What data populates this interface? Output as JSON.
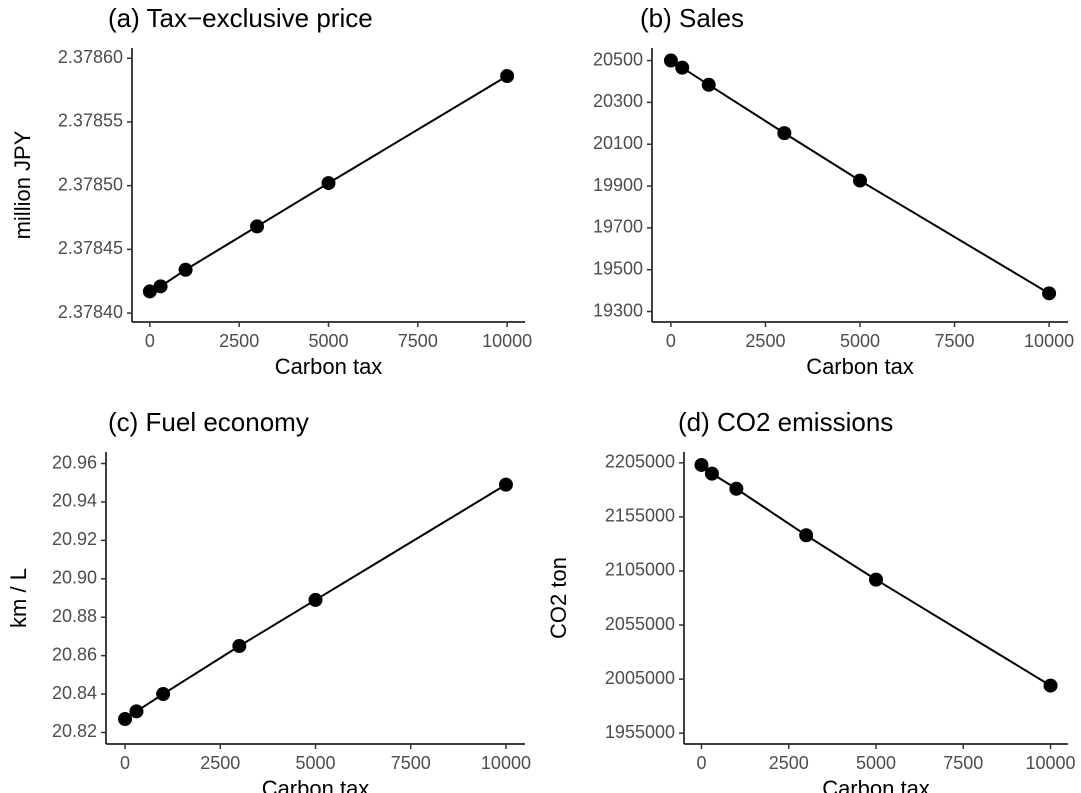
{
  "chart_data": [
    {
      "type": "line",
      "title": "(a) Tax−exclusive price",
      "x_label": "Carbon tax",
      "y_label": "million JPY",
      "x": [
        0,
        300,
        1000,
        3000,
        5000,
        10000
      ],
      "series": [
        {
          "color": "#000000",
          "values": [
            2.378417,
            2.378421,
            2.378434,
            2.378468,
            2.378502,
            2.378586
          ]
        }
      ],
      "xlim": [
        -500,
        10500
      ],
      "xticks": [
        0,
        2500,
        5000,
        7500,
        10000
      ],
      "ylim": [
        2.378393,
        2.378608
      ],
      "yticks": [
        {
          "value": 2.3784,
          "label": "2.37840"
        },
        2.37845,
        {
          "value": 2.3785,
          "label": "2.37850"
        },
        2.37855,
        {
          "value": 2.3786,
          "label": "2.37860"
        }
      ]
    },
    {
      "type": "line",
      "title": "(b) Sales",
      "x_label": "Carbon tax",
      "x": [
        0,
        300,
        1000,
        3000,
        5000,
        10000
      ],
      "series": [
        {
          "color": "#000000",
          "values": [
            20500,
            20466,
            20384,
            20153,
            19926,
            19387
          ]
        }
      ],
      "xlim": [
        -500,
        10500
      ],
      "xticks": [
        0,
        2500,
        5000,
        7500,
        10000
      ],
      "ylim": [
        19250,
        20560
      ],
      "yticks": [
        19300,
        19500,
        19700,
        19900,
        20100,
        20300,
        20500
      ]
    },
    {
      "type": "line",
      "title": "(c) Fuel economy",
      "x_label": "Carbon tax",
      "y_label": "km / L",
      "x": [
        0,
        300,
        1000,
        3000,
        5000,
        10000
      ],
      "series": [
        {
          "color": "#000000",
          "values": [
            20.827,
            20.831,
            20.84,
            20.865,
            20.889,
            20.949
          ]
        }
      ],
      "xlim": [
        -500,
        10500
      ],
      "xticks": [
        0,
        2500,
        5000,
        7500,
        10000
      ],
      "ylim": [
        20.814,
        20.966
      ],
      "yticks": [
        20.82,
        20.84,
        20.86,
        20.88,
        {
          "value": 20.9,
          "label": "20.90"
        },
        20.92,
        20.94,
        20.96
      ]
    },
    {
      "type": "line",
      "title": "(d) CO2 emissions",
      "x_label": "Carbon tax",
      "y_label": "CO2 ton",
      "x": [
        0,
        300,
        1000,
        3000,
        5000,
        10000
      ],
      "series": [
        {
          "color": "#000000",
          "values": [
            2203000,
            2195000,
            2181000,
            2138000,
            2097000,
            1999000
          ]
        }
      ],
      "xlim": [
        -500,
        10500
      ],
      "xticks": [
        0,
        2500,
        5000,
        7500,
        10000
      ],
      "ylim": [
        1945000,
        2215000
      ],
      "yticks": [
        1955000,
        2005000,
        2055000,
        2105000,
        2155000,
        2205000
      ]
    }
  ]
}
